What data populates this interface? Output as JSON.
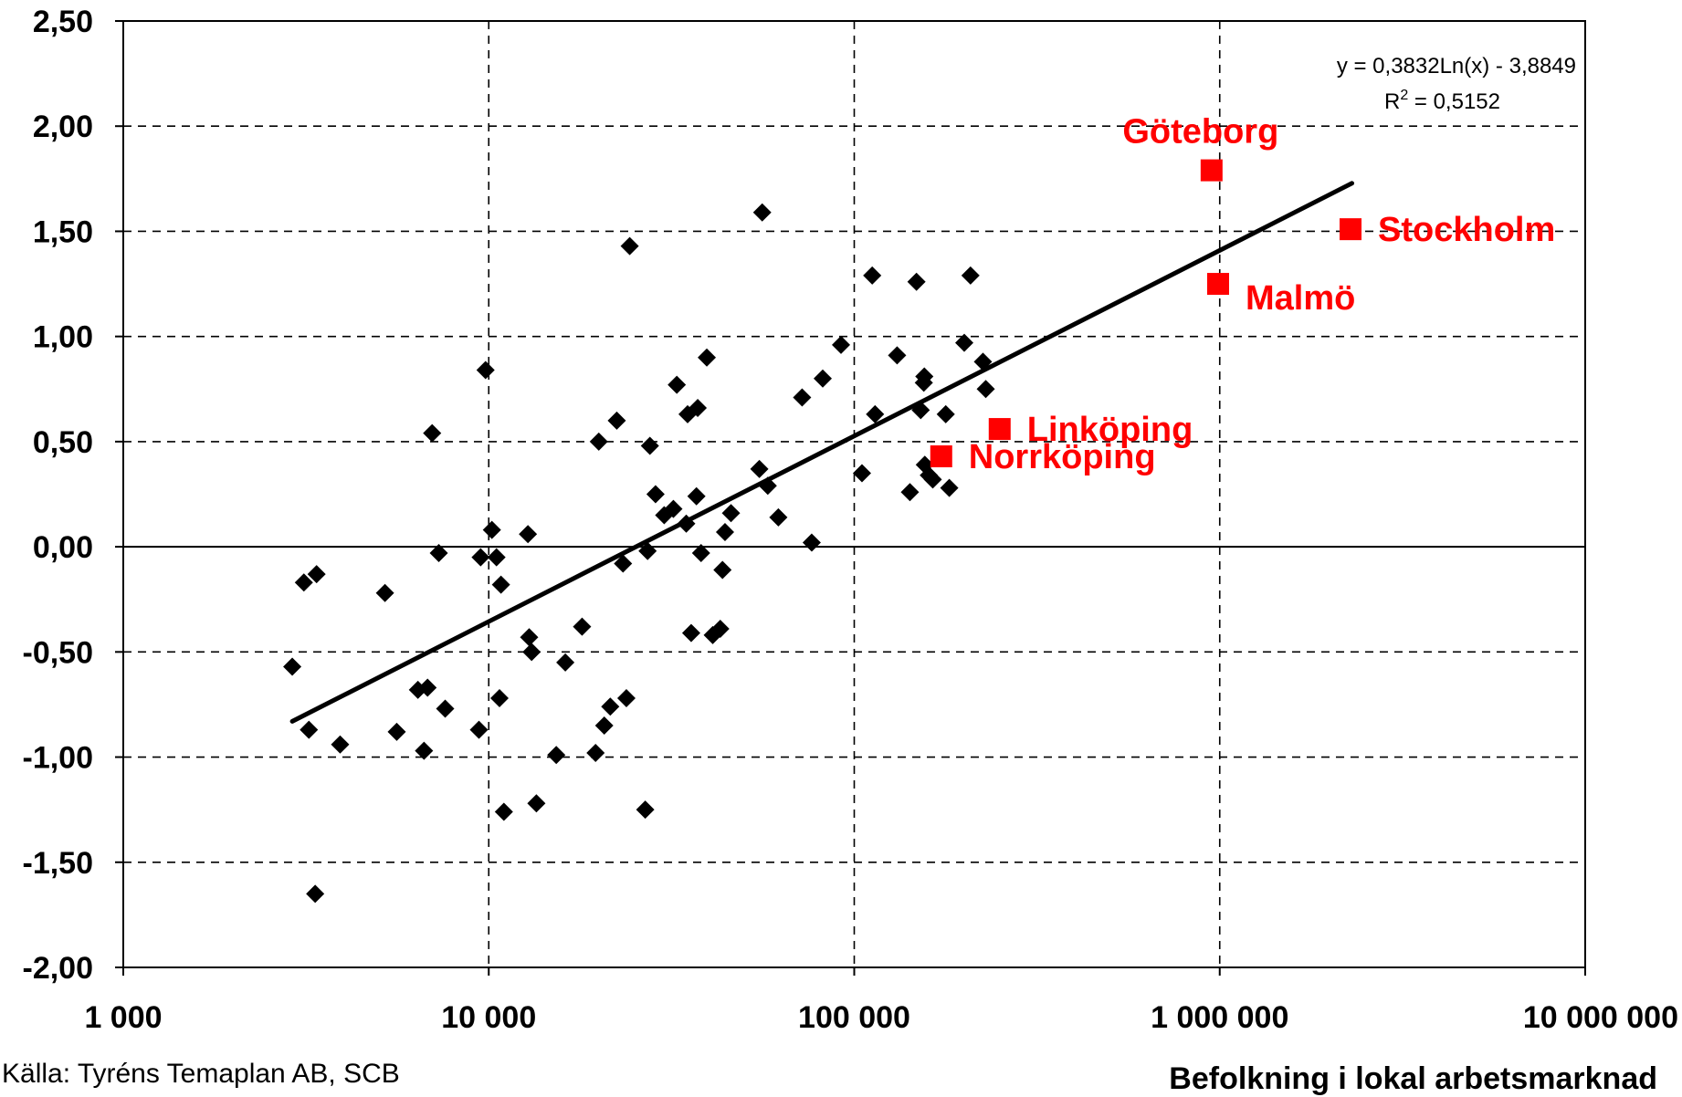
{
  "chart_data": {
    "type": "scatter",
    "xscale": "log",
    "xlim": [
      1000,
      10000000
    ],
    "ylim": [
      -2.0,
      2.5
    ],
    "x_ticks": [
      1000,
      10000,
      100000,
      1000000,
      10000000
    ],
    "x_tick_labels": [
      "1 000",
      "10 000",
      "100 000",
      "1 000 000",
      "10 000 000"
    ],
    "y_ticks": [
      2.5,
      2.0,
      1.5,
      1.0,
      0.5,
      0.0,
      -0.5,
      -1.0,
      -1.5,
      -2.0
    ],
    "y_tick_labels": [
      "2,50",
      "2,00",
      "1,50",
      "1,00",
      "0,50",
      "0,00",
      "-0,50",
      "-1,00",
      "-1,50",
      "-2,00"
    ],
    "grid": "dashed",
    "xlabel": "Befolkning i lokal arbetsmarknad",
    "ylabel": "",
    "source": "Källa: Tyréns Temaplan AB, SCB",
    "trendline": {
      "x_range": [
        2900,
        2300000
      ],
      "equation": "y = 0,3832Ln(x) - 3,8849",
      "r2_prefix": "R",
      "r2_exp": "2",
      "r2_value": " = 0,5152"
    },
    "series": [
      {
        "marker": "diamond",
        "color": "#000000",
        "points": [
          [
            2900,
            -0.57
          ],
          [
            3120,
            -0.17
          ],
          [
            3220,
            -0.87
          ],
          [
            3350,
            -1.65
          ],
          [
            3380,
            -0.13
          ],
          [
            3920,
            -0.94
          ],
          [
            5200,
            -0.22
          ],
          [
            5600,
            -0.88
          ],
          [
            6400,
            -0.68
          ],
          [
            6650,
            -0.97
          ],
          [
            6800,
            -0.67
          ],
          [
            7000,
            0.54
          ],
          [
            7300,
            -0.03
          ],
          [
            7600,
            -0.77
          ],
          [
            9400,
            -0.87
          ],
          [
            9500,
            -0.05
          ],
          [
            9800,
            0.84
          ],
          [
            10200,
            0.08
          ],
          [
            10500,
            -0.05
          ],
          [
            10700,
            -0.72
          ],
          [
            10800,
            -0.18
          ],
          [
            11000,
            -1.26
          ],
          [
            12800,
            0.06
          ],
          [
            12900,
            -0.43
          ],
          [
            13100,
            -0.5
          ],
          [
            13500,
            -1.22
          ],
          [
            15300,
            -0.99
          ],
          [
            16200,
            -0.55
          ],
          [
            18000,
            -0.38
          ],
          [
            19600,
            -0.98
          ],
          [
            20000,
            0.5
          ],
          [
            20700,
            -0.85
          ],
          [
            21500,
            -0.76
          ],
          [
            22400,
            0.6
          ],
          [
            23300,
            -0.08
          ],
          [
            23800,
            -0.72
          ],
          [
            24300,
            1.43
          ],
          [
            26800,
            -1.25
          ],
          [
            27200,
            -0.02
          ],
          [
            27600,
            0.48
          ],
          [
            28600,
            0.25
          ],
          [
            30200,
            0.15
          ],
          [
            32000,
            0.18
          ],
          [
            32700,
            0.77
          ],
          [
            34700,
            0.11
          ],
          [
            35000,
            0.63
          ],
          [
            35800,
            -0.41
          ],
          [
            37000,
            0.24
          ],
          [
            37300,
            0.66
          ],
          [
            38100,
            -0.03
          ],
          [
            39500,
            0.9
          ],
          [
            41000,
            -0.42
          ],
          [
            43000,
            -0.39
          ],
          [
            43600,
            -0.11
          ],
          [
            44300,
            0.07
          ],
          [
            46000,
            0.16
          ],
          [
            55000,
            0.37
          ],
          [
            56000,
            1.59
          ],
          [
            58000,
            0.29
          ],
          [
            62000,
            0.14
          ],
          [
            72000,
            0.71
          ],
          [
            76500,
            0.02
          ],
          [
            82000,
            0.8
          ],
          [
            92000,
            0.96
          ],
          [
            105000,
            0.35
          ],
          [
            112000,
            1.29
          ],
          [
            114000,
            0.63
          ],
          [
            131000,
            0.91
          ],
          [
            142000,
            0.26
          ],
          [
            148000,
            1.26
          ],
          [
            152000,
            0.65
          ],
          [
            155000,
            0.78
          ],
          [
            155500,
            0.81
          ],
          [
            156000,
            0.39
          ],
          [
            160000,
            0.34
          ],
          [
            164000,
            0.32
          ],
          [
            178000,
            0.63
          ],
          [
            182000,
            0.28
          ],
          [
            200000,
            0.97
          ],
          [
            208000,
            1.29
          ],
          [
            225000,
            0.88
          ],
          [
            229000,
            0.75
          ]
        ]
      },
      {
        "marker": "square",
        "color": "#ff0000",
        "points": [
          [
            950000,
            1.79,
            "Göteborg",
            "above"
          ],
          [
            2280000,
            1.51,
            "Stockholm",
            "right"
          ],
          [
            990000,
            1.25,
            "Malmö",
            "below-right"
          ],
          [
            250000,
            0.56,
            "Linköping",
            "right"
          ],
          [
            173000,
            0.43,
            "Norrköping",
            "right"
          ]
        ]
      }
    ]
  }
}
